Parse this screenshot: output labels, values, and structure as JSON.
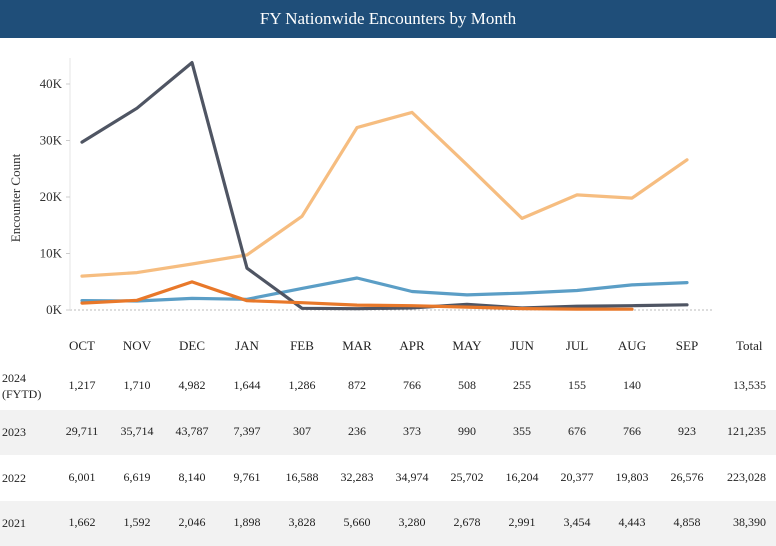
{
  "header": {
    "title": "FY Nationwide Encounters by Month"
  },
  "chart_data": {
    "type": "line",
    "title": "FY Nationwide Encounters by Month",
    "ylabel": "Encounter Count",
    "xlabel": "",
    "ylim": [
      0,
      45000
    ],
    "yticks": [
      0,
      10000,
      20000,
      30000,
      40000
    ],
    "ytick_labels": [
      "0K",
      "10K",
      "20K",
      "30K",
      "40K"
    ],
    "categories": [
      "OCT",
      "NOV",
      "DEC",
      "JAN",
      "FEB",
      "MAR",
      "APR",
      "MAY",
      "JUN",
      "JUL",
      "AUG",
      "SEP"
    ],
    "series": [
      {
        "name": "2024 (FYTD)",
        "color": "#e8782a",
        "values": [
          1217,
          1710,
          4982,
          1644,
          1286,
          872,
          766,
          508,
          255,
          155,
          140,
          null
        ]
      },
      {
        "name": "2023",
        "color": "#4f5563",
        "values": [
          29711,
          35714,
          43787,
          7397,
          307,
          236,
          373,
          990,
          355,
          676,
          766,
          923
        ]
      },
      {
        "name": "2022",
        "color": "#f6bd80",
        "values": [
          6001,
          6619,
          8140,
          9761,
          16588,
          32283,
          34974,
          25702,
          16204,
          20377,
          19803,
          26576
        ]
      },
      {
        "name": "2021",
        "color": "#5b9ec6",
        "values": [
          1662,
          1592,
          2046,
          1898,
          3828,
          5660,
          3280,
          2678,
          2991,
          3454,
          4443,
          4858
        ]
      }
    ]
  },
  "table": {
    "total_header": "Total",
    "rows": [
      {
        "label_line1": "2024",
        "label_line2": "(FYTD)",
        "cells": [
          "1,217",
          "1,710",
          "4,982",
          "1,644",
          "1,286",
          "872",
          "766",
          "508",
          "255",
          "155",
          "140",
          ""
        ],
        "total": "13,535"
      },
      {
        "label_line1": "2023",
        "label_line2": "",
        "cells": [
          "29,711",
          "35,714",
          "43,787",
          "7,397",
          "307",
          "236",
          "373",
          "990",
          "355",
          "676",
          "766",
          "923"
        ],
        "total": "121,235"
      },
      {
        "label_line1": "2022",
        "label_line2": "",
        "cells": [
          "6,001",
          "6,619",
          "8,140",
          "9,761",
          "16,588",
          "32,283",
          "34,974",
          "25,702",
          "16,204",
          "20,377",
          "19,803",
          "26,576"
        ],
        "total": "223,028"
      },
      {
        "label_line1": "2021",
        "label_line2": "",
        "cells": [
          "1,662",
          "1,592",
          "2,046",
          "1,898",
          "3,828",
          "5,660",
          "3,280",
          "2,678",
          "2,991",
          "3,454",
          "4,443",
          "4,858"
        ],
        "total": "38,390"
      }
    ]
  }
}
